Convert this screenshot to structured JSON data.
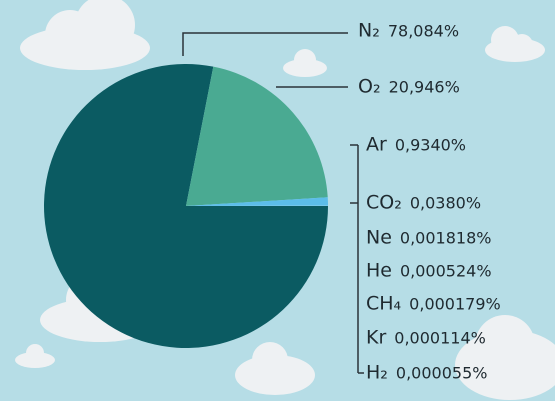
{
  "chart_data": {
    "type": "pie",
    "categories": [
      "N₂",
      "O₂",
      "Ar",
      "CO₂",
      "Ne",
      "He",
      "CH₄",
      "Kr",
      "H₂"
    ],
    "values": [
      78.084,
      20.946,
      0.934,
      0.038,
      0.001818,
      0.000524,
      0.000179,
      0.000114,
      5.5e-05
    ],
    "value_labels": [
      "78,084%",
      "20,946%",
      "0,9340%",
      "0,0380%",
      "0,001818%",
      "0,000524%",
      "0,000179%",
      "0,000114%",
      "0,000055%"
    ],
    "colors": [
      "#0b5b62",
      "#4aaa92",
      "#5cbde9",
      "#8fd3f0",
      "#8fd3f0",
      "#8fd3f0",
      "#8fd3f0",
      "#8fd3f0",
      "#8fd3f0"
    ]
  }
}
